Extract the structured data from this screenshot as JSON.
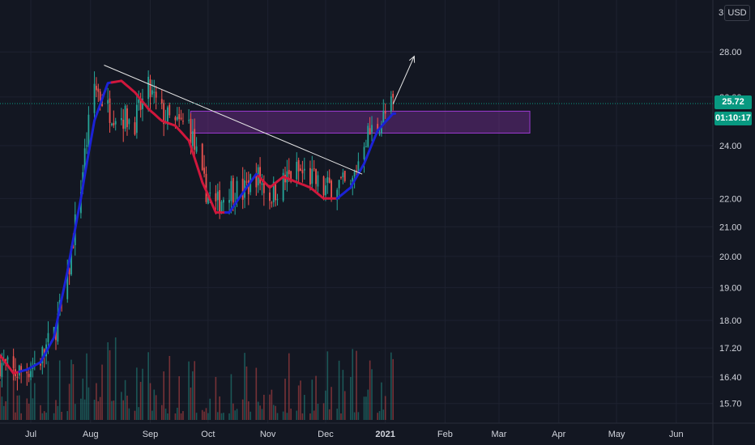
{
  "scale": {
    "currency": "USD",
    "log": true,
    "top_tick_fragment": "3",
    "y_ticks": [
      "15.70",
      "16.40",
      "17.20",
      "18.00",
      "19.00",
      "20.00",
      "21.00",
      "22.00",
      "24.00",
      "26.00",
      "28.00"
    ],
    "last_price": "25.72",
    "countdown": "01:10:17"
  },
  "colors": {
    "background": "#131722",
    "grid": "#1e2230",
    "up": "#26a69a",
    "down": "#ef5350",
    "ma_up": "#1b22d6",
    "ma_down": "#d1173c",
    "zone_fill": "rgba(137,49,165,0.38)",
    "zone_border": "#9c3bd1",
    "price_line": "#089981",
    "annotation": "#e6e6e6"
  },
  "chart_data": {
    "type": "candlestick",
    "x_range": [
      "2020-06-15",
      "2021-06-20"
    ],
    "y_range": [
      15.2,
      30.5
    ],
    "x_ticks": [
      {
        "date": "2020-07-01",
        "label": "Jul"
      },
      {
        "date": "2020-08-01",
        "label": "Aug"
      },
      {
        "date": "2020-09-01",
        "label": "Sep"
      },
      {
        "date": "2020-10-01",
        "label": "Oct"
      },
      {
        "date": "2020-11-01",
        "label": "Nov"
      },
      {
        "date": "2020-12-01",
        "label": "Dec"
      },
      {
        "date": "2021-01-01",
        "label": "2021",
        "bold": true
      },
      {
        "date": "2021-02-01",
        "label": "Feb"
      },
      {
        "date": "2021-03-01",
        "label": "Mar"
      },
      {
        "date": "2021-04-01",
        "label": "Apr"
      },
      {
        "date": "2021-05-01",
        "label": "May"
      },
      {
        "date": "2021-06-01",
        "label": "Jun"
      }
    ],
    "price_path": [
      [
        "2020-06-15",
        16.8
      ],
      [
        "2020-06-22",
        16.5
      ],
      [
        "2020-06-29",
        16.6
      ],
      [
        "2020-07-06",
        16.9
      ],
      [
        "2020-07-13",
        17.6
      ],
      [
        "2020-07-20",
        19.2
      ],
      [
        "2020-07-27",
        22.5
      ],
      [
        "2020-08-03",
        26.5
      ],
      [
        "2020-08-10",
        25.5
      ],
      [
        "2020-08-17",
        25.2
      ],
      [
        "2020-08-24",
        25.0
      ],
      [
        "2020-08-31",
        26.3
      ],
      [
        "2020-09-07",
        25.3
      ],
      [
        "2020-09-14",
        24.8
      ],
      [
        "2020-09-21",
        24.9
      ],
      [
        "2020-09-28",
        22.6
      ],
      [
        "2020-10-05",
        21.7
      ],
      [
        "2020-10-12",
        22.4
      ],
      [
        "2020-10-19",
        22.2
      ],
      [
        "2020-10-26",
        22.9
      ],
      [
        "2020-11-02",
        22.1
      ],
      [
        "2020-11-09",
        22.6
      ],
      [
        "2020-11-16",
        23.0
      ],
      [
        "2020-11-23",
        22.8
      ],
      [
        "2020-11-30",
        22.3
      ],
      [
        "2020-12-07",
        22.6
      ],
      [
        "2020-12-14",
        22.3
      ],
      [
        "2020-12-21",
        24.3
      ],
      [
        "2020-12-28",
        24.8
      ],
      [
        "2021-01-05",
        25.7
      ]
    ],
    "moving_average": [
      [
        "2020-06-15",
        17.0
      ],
      [
        "2020-06-22",
        16.5
      ],
      [
        "2020-06-29",
        16.6
      ],
      [
        "2020-07-06",
        16.8
      ],
      [
        "2020-07-13",
        17.5
      ],
      [
        "2020-07-20",
        19.5
      ],
      [
        "2020-07-27",
        22.0
      ],
      [
        "2020-08-03",
        25.0
      ],
      [
        "2020-08-10",
        26.6
      ],
      [
        "2020-08-17",
        26.7
      ],
      [
        "2020-08-24",
        26.2
      ],
      [
        "2020-08-31",
        25.5
      ],
      [
        "2020-09-07",
        25.0
      ],
      [
        "2020-09-14",
        24.8
      ],
      [
        "2020-09-21",
        24.2
      ],
      [
        "2020-09-28",
        22.6
      ],
      [
        "2020-10-05",
        21.5
      ],
      [
        "2020-10-12",
        21.5
      ],
      [
        "2020-10-19",
        22.2
      ],
      [
        "2020-10-26",
        22.9
      ],
      [
        "2020-11-02",
        22.4
      ],
      [
        "2020-11-09",
        22.8
      ],
      [
        "2020-11-16",
        22.6
      ],
      [
        "2020-11-23",
        22.4
      ],
      [
        "2020-11-30",
        22.0
      ],
      [
        "2020-12-07",
        22.0
      ],
      [
        "2020-12-14",
        22.4
      ],
      [
        "2020-12-21",
        23.3
      ],
      [
        "2020-12-28",
        24.6
      ],
      [
        "2021-01-05",
        25.3
      ]
    ],
    "ma_turns": [
      {
        "from": "2020-06-15",
        "to": "2020-06-25",
        "trend": "down"
      },
      {
        "from": "2020-06-25",
        "to": "2020-08-12",
        "trend": "up"
      },
      {
        "from": "2020-08-12",
        "to": "2020-10-10",
        "trend": "down"
      },
      {
        "from": "2020-10-10",
        "to": "2020-10-27",
        "trend": "up"
      },
      {
        "from": "2020-10-27",
        "to": "2020-12-07",
        "trend": "down"
      },
      {
        "from": "2020-12-07",
        "to": "2021-01-06",
        "trend": "up"
      }
    ],
    "trendline": {
      "from": [
        "2020-08-08",
        27.4
      ],
      "to": [
        "2020-12-20",
        22.9
      ]
    },
    "projection_arrow": {
      "from": [
        "2021-01-05",
        25.7
      ],
      "to": [
        "2021-01-16",
        27.8
      ]
    },
    "resistance_zone": {
      "from": "2020-09-22",
      "to": "2021-03-17",
      "low": 24.5,
      "high": 25.4
    },
    "last_price": 25.72,
    "volume_profile": "bars along bottom edge, relative heights"
  }
}
